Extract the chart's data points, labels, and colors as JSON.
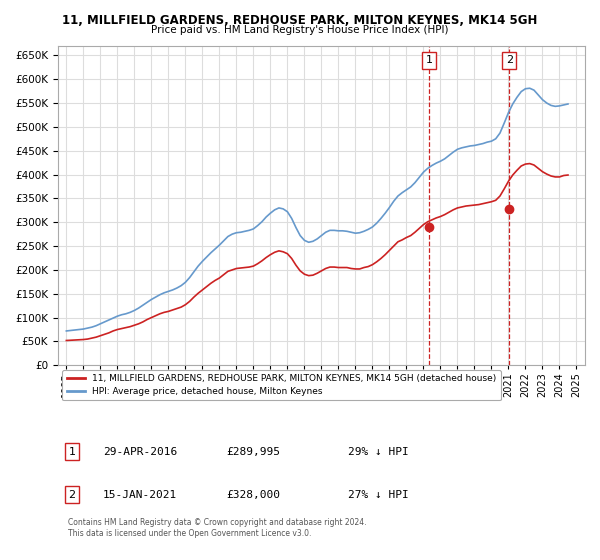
{
  "title": "11, MILLFIELD GARDENS, REDHOUSE PARK, MILTON KEYNES, MK14 5GH",
  "subtitle": "Price paid vs. HM Land Registry's House Price Index (HPI)",
  "hpi_color": "#6699cc",
  "price_color": "#cc2222",
  "dashed_color": "#cc2222",
  "background": "#ffffff",
  "grid_color": "#dddddd",
  "ylim": [
    0,
    670000
  ],
  "yticks": [
    0,
    50000,
    100000,
    150000,
    200000,
    250000,
    300000,
    350000,
    400000,
    450000,
    500000,
    550000,
    600000,
    650000
  ],
  "xlabel_years": [
    "1995",
    "1996",
    "1997",
    "1998",
    "1999",
    "2000",
    "2001",
    "2002",
    "2003",
    "2004",
    "2005",
    "2006",
    "2007",
    "2008",
    "2009",
    "2010",
    "2011",
    "2012",
    "2013",
    "2014",
    "2015",
    "2016",
    "2017",
    "2018",
    "2019",
    "2020",
    "2021",
    "2022",
    "2023",
    "2024",
    "2025"
  ],
  "purchase1_date": 2016.33,
  "purchase1_price": 289995,
  "purchase1_label": "1",
  "purchase2_date": 2021.05,
  "purchase2_price": 328000,
  "purchase2_label": "2",
  "legend_price_label": "11, MILLFIELD GARDENS, REDHOUSE PARK, MILTON KEYNES, MK14 5GH (detached house)",
  "legend_hpi_label": "HPI: Average price, detached house, Milton Keynes",
  "annotation1": "1   29-APR-2016      £289,995      29% ↓ HPI",
  "annotation2": "2   15-JAN-2021      £328,000      27% ↓ HPI",
  "footer": "Contains HM Land Registry data © Crown copyright and database right 2024.\nThis data is licensed under the Open Government Licence v3.0.",
  "hpi_data_x": [
    1995.0,
    1995.25,
    1995.5,
    1995.75,
    1996.0,
    1996.25,
    1996.5,
    1996.75,
    1997.0,
    1997.25,
    1997.5,
    1997.75,
    1998.0,
    1998.25,
    1998.5,
    1998.75,
    1999.0,
    1999.25,
    1999.5,
    1999.75,
    2000.0,
    2000.25,
    2000.5,
    2000.75,
    2001.0,
    2001.25,
    2001.5,
    2001.75,
    2002.0,
    2002.25,
    2002.5,
    2002.75,
    2003.0,
    2003.25,
    2003.5,
    2003.75,
    2004.0,
    2004.25,
    2004.5,
    2004.75,
    2005.0,
    2005.25,
    2005.5,
    2005.75,
    2006.0,
    2006.25,
    2006.5,
    2006.75,
    2007.0,
    2007.25,
    2007.5,
    2007.75,
    2008.0,
    2008.25,
    2008.5,
    2008.75,
    2009.0,
    2009.25,
    2009.5,
    2009.75,
    2010.0,
    2010.25,
    2010.5,
    2010.75,
    2011.0,
    2011.25,
    2011.5,
    2011.75,
    2012.0,
    2012.25,
    2012.5,
    2012.75,
    2013.0,
    2013.25,
    2013.5,
    2013.75,
    2014.0,
    2014.25,
    2014.5,
    2014.75,
    2015.0,
    2015.25,
    2015.5,
    2015.75,
    2016.0,
    2016.25,
    2016.5,
    2016.75,
    2017.0,
    2017.25,
    2017.5,
    2017.75,
    2018.0,
    2018.25,
    2018.5,
    2018.75,
    2019.0,
    2019.25,
    2019.5,
    2019.75,
    2020.0,
    2020.25,
    2020.5,
    2020.75,
    2021.0,
    2021.25,
    2021.5,
    2021.75,
    2022.0,
    2022.25,
    2022.5,
    2022.75,
    2023.0,
    2023.25,
    2023.5,
    2023.75,
    2024.0,
    2024.25,
    2024.5
  ],
  "hpi_data_y": [
    72000,
    73000,
    74000,
    75000,
    76000,
    78000,
    80000,
    83000,
    87000,
    91000,
    95000,
    99000,
    103000,
    106000,
    108000,
    111000,
    115000,
    120000,
    126000,
    132000,
    138000,
    143000,
    148000,
    152000,
    155000,
    158000,
    162000,
    167000,
    174000,
    184000,
    196000,
    208000,
    218000,
    227000,
    236000,
    244000,
    252000,
    261000,
    270000,
    275000,
    278000,
    279000,
    281000,
    283000,
    286000,
    293000,
    301000,
    311000,
    319000,
    326000,
    330000,
    328000,
    322000,
    308000,
    289000,
    272000,
    262000,
    258000,
    260000,
    265000,
    272000,
    279000,
    283000,
    283000,
    282000,
    282000,
    281000,
    279000,
    277000,
    278000,
    281000,
    285000,
    290000,
    298000,
    308000,
    319000,
    331000,
    344000,
    355000,
    362000,
    368000,
    374000,
    383000,
    394000,
    405000,
    413000,
    419000,
    424000,
    428000,
    433000,
    440000,
    447000,
    453000,
    456000,
    458000,
    460000,
    461000,
    463000,
    465000,
    468000,
    470000,
    475000,
    487000,
    508000,
    530000,
    548000,
    562000,
    574000,
    580000,
    581000,
    577000,
    567000,
    557000,
    550000,
    545000,
    543000,
    544000,
    546000,
    548000
  ],
  "price_data_x": [
    1995.0,
    1995.25,
    1995.5,
    1995.75,
    1996.0,
    1996.25,
    1996.5,
    1996.75,
    1997.0,
    1997.25,
    1997.5,
    1997.75,
    1998.0,
    1998.25,
    1998.5,
    1998.75,
    1999.0,
    1999.25,
    1999.5,
    1999.75,
    2000.0,
    2000.25,
    2000.5,
    2000.75,
    2001.0,
    2001.25,
    2001.5,
    2001.75,
    2002.0,
    2002.25,
    2002.5,
    2002.75,
    2003.0,
    2003.25,
    2003.5,
    2003.75,
    2004.0,
    2004.25,
    2004.5,
    2004.75,
    2005.0,
    2005.25,
    2005.5,
    2005.75,
    2006.0,
    2006.25,
    2006.5,
    2006.75,
    2007.0,
    2007.25,
    2007.5,
    2007.75,
    2008.0,
    2008.25,
    2008.5,
    2008.75,
    2009.0,
    2009.25,
    2009.5,
    2009.75,
    2010.0,
    2010.25,
    2010.5,
    2010.75,
    2011.0,
    2011.25,
    2011.5,
    2011.75,
    2012.0,
    2012.25,
    2012.5,
    2012.75,
    2013.0,
    2013.25,
    2013.5,
    2013.75,
    2014.0,
    2014.25,
    2014.5,
    2014.75,
    2015.0,
    2015.25,
    2015.5,
    2015.75,
    2016.0,
    2016.25,
    2016.5,
    2016.75,
    2017.0,
    2017.25,
    2017.5,
    2017.75,
    2018.0,
    2018.25,
    2018.5,
    2018.75,
    2019.0,
    2019.25,
    2019.5,
    2019.75,
    2020.0,
    2020.25,
    2020.5,
    2020.75,
    2021.0,
    2021.25,
    2021.5,
    2021.75,
    2022.0,
    2022.25,
    2022.5,
    2022.75,
    2023.0,
    2023.25,
    2023.5,
    2023.75,
    2024.0,
    2024.25,
    2024.5
  ],
  "price_data_y": [
    52000,
    52500,
    53000,
    53500,
    54000,
    55000,
    57000,
    59000,
    62000,
    65000,
    68000,
    72000,
    75000,
    77000,
    79000,
    81000,
    84000,
    87000,
    91000,
    96000,
    100000,
    104000,
    108000,
    111000,
    113000,
    116000,
    119000,
    122000,
    127000,
    134000,
    143000,
    151000,
    158000,
    165000,
    172000,
    178000,
    183000,
    190000,
    197000,
    200000,
    203000,
    204000,
    205000,
    206000,
    208000,
    213000,
    219000,
    226000,
    232000,
    237000,
    240000,
    238000,
    234000,
    224000,
    210000,
    198000,
    191000,
    188000,
    189000,
    193000,
    198000,
    203000,
    206000,
    206000,
    205000,
    205000,
    205000,
    203000,
    202000,
    202000,
    205000,
    207000,
    211000,
    217000,
    224000,
    232000,
    241000,
    250000,
    259000,
    263000,
    268000,
    272000,
    279000,
    287000,
    295000,
    301000,
    305000,
    309000,
    312000,
    316000,
    321000,
    326000,
    330000,
    332000,
    334000,
    335000,
    336000,
    337000,
    339000,
    341000,
    343000,
    346000,
    355000,
    370000,
    386000,
    399000,
    409000,
    418000,
    422000,
    423000,
    420000,
    413000,
    406000,
    401000,
    397000,
    395000,
    395000,
    398000,
    399000
  ]
}
